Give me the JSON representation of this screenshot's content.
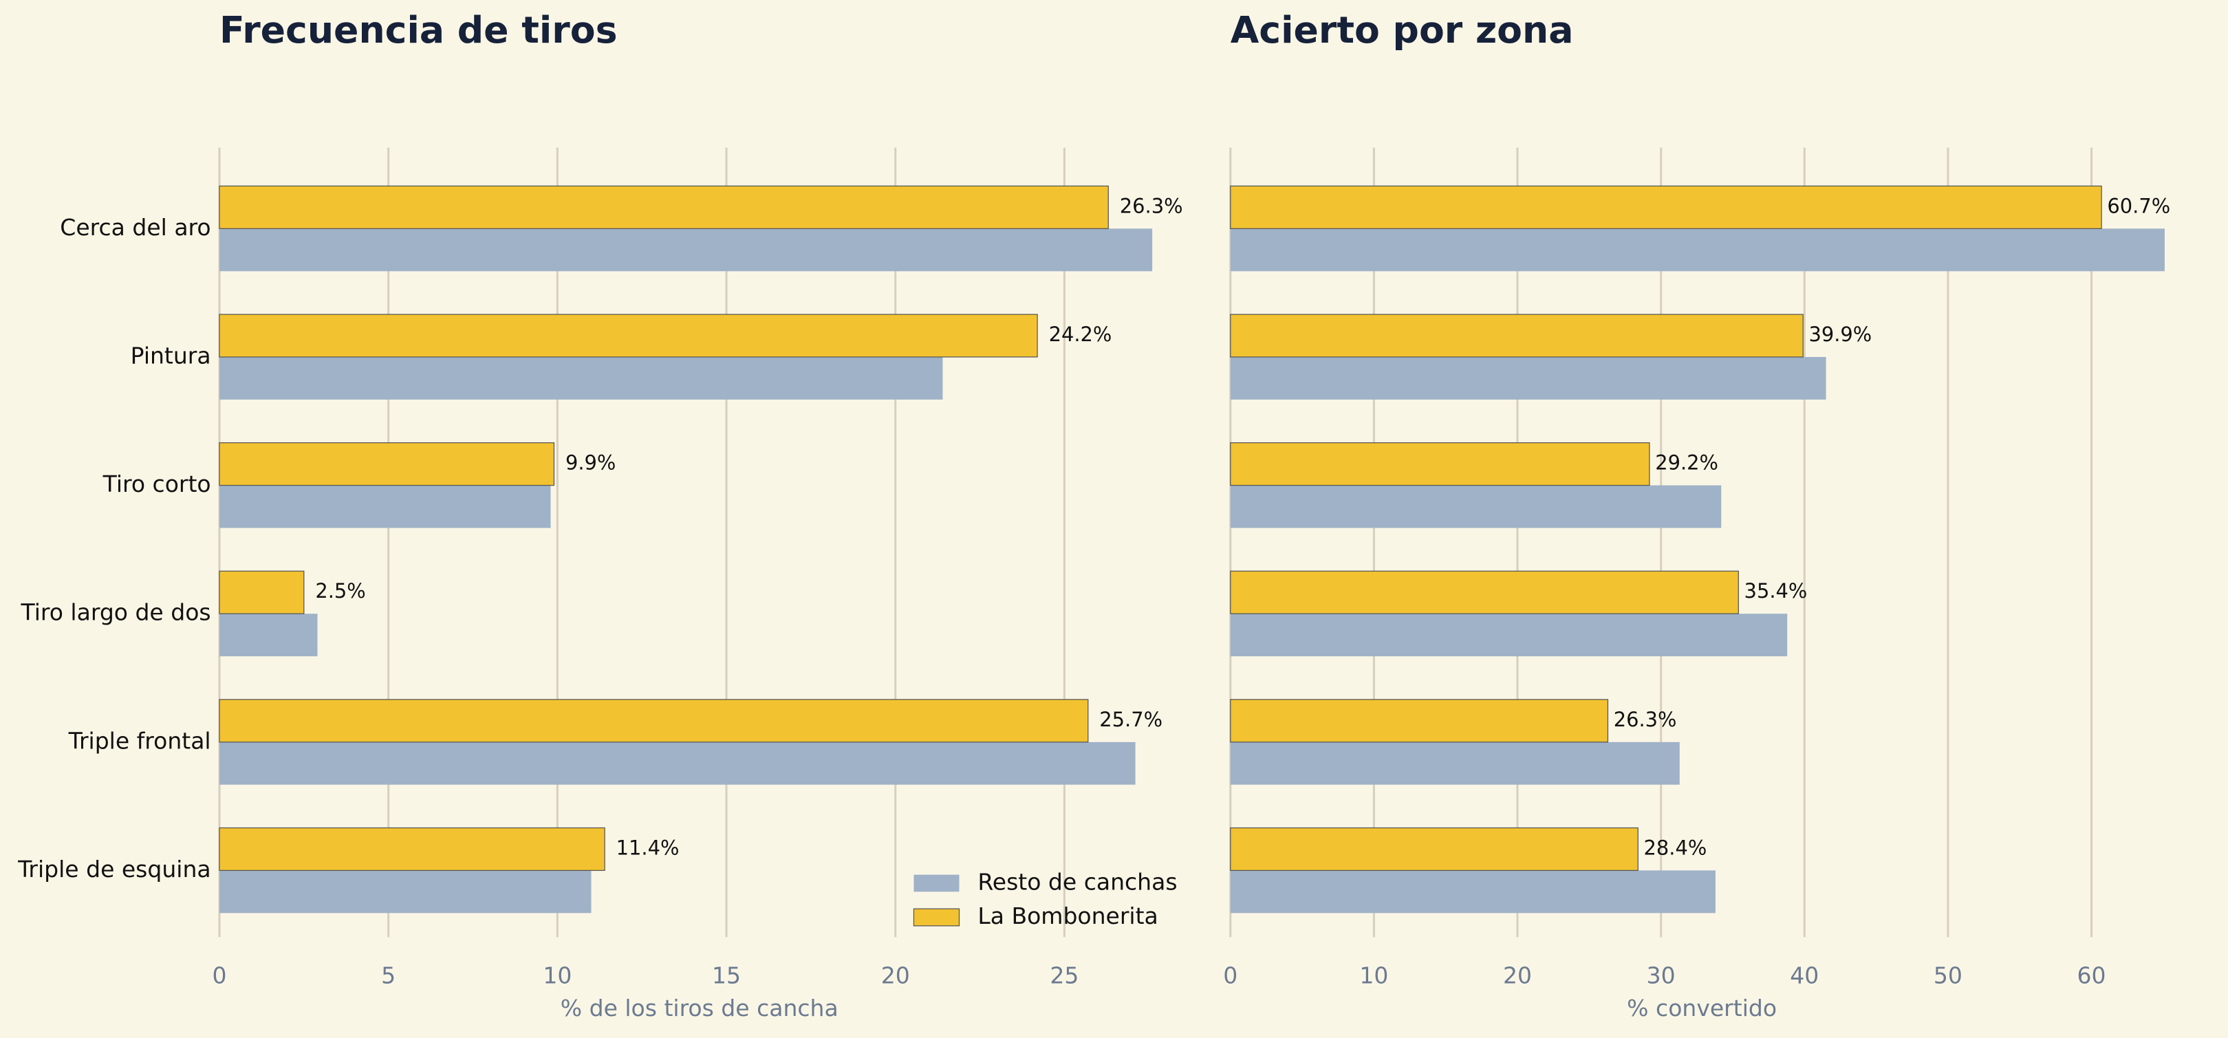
{
  "chart_data": [
    {
      "type": "barh",
      "title": "Frecuencia de tiros",
      "xlabel": "% de los tiros de cancha",
      "categories": [
        "Cerca del aro",
        "Pintura",
        "Tiro corto",
        "Tiro largo de dos",
        "Triple frontal",
        "Triple de esquina"
      ],
      "series": [
        {
          "name": "Resto de canchas",
          "color": "#9fb2c8",
          "values": [
            27.6,
            21.4,
            9.8,
            2.9,
            27.1,
            11.0
          ]
        },
        {
          "name": "La Bombonerita",
          "color": "#f2c230",
          "values": [
            26.3,
            24.2,
            9.9,
            2.5,
            25.7,
            11.4
          ],
          "value_labels": [
            "26.3%",
            "24.2%",
            "9.9%",
            "2.5%",
            "25.7%",
            "11.4%"
          ]
        }
      ],
      "xlim": [
        0,
        28.4
      ],
      "xticks": [
        0,
        5,
        10,
        15,
        20,
        25
      ],
      "grid": true,
      "legend": "lower right"
    },
    {
      "type": "barh",
      "title": "Acierto por zona",
      "xlabel": "% convertido",
      "series": [
        {
          "color": "#9fb2c8",
          "values": [
            65.1,
            41.5,
            34.2,
            38.8,
            31.3,
            33.8
          ]
        },
        {
          "color": "#f2c230",
          "values": [
            60.7,
            39.9,
            29.2,
            35.4,
            26.3,
            28.4
          ],
          "value_labels": [
            "60.7%",
            "39.9%",
            "29.2%",
            "35.4%",
            "26.3%",
            "28.4%"
          ]
        }
      ],
      "xlim": [
        0,
        65.7
      ],
      "xticks": [
        0,
        10,
        20,
        30,
        40,
        50,
        60
      ],
      "grid": true
    }
  ]
}
